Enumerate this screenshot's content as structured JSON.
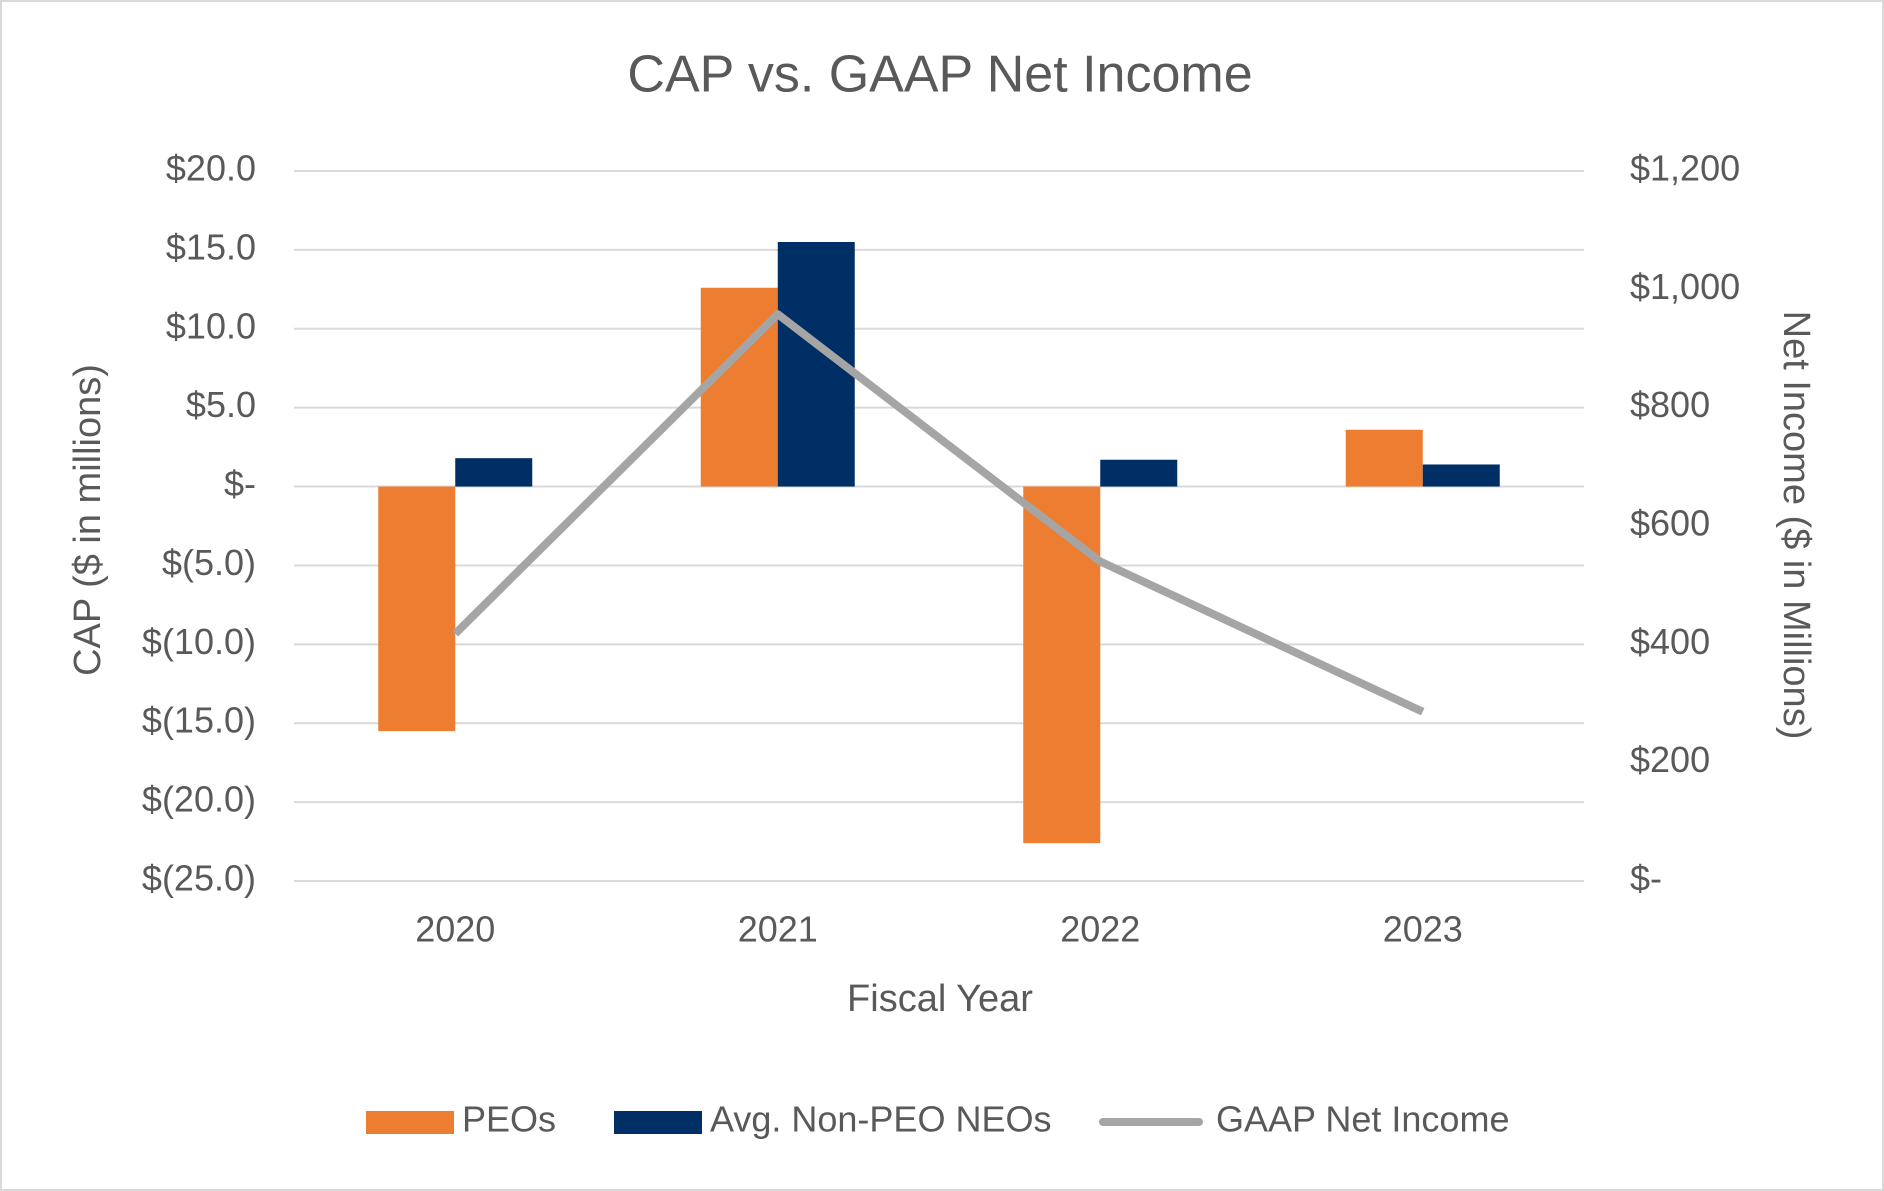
{
  "chart_data": {
    "type": "bar",
    "title": "CAP vs. GAAP Net Income",
    "x_label": "Fiscal Year",
    "y_label": "CAP ($ in millions)",
    "y2_label": "Net Income ($ in Millions)",
    "categories": [
      "2020",
      "2021",
      "2022",
      "2023"
    ],
    "series": [
      {
        "name": "PEOs",
        "type": "bar",
        "color": "#ed7d31",
        "values": [
          -15.5,
          12.6,
          -22.6,
          3.6
        ]
      },
      {
        "name": "Avg. Non-PEO NEOs",
        "type": "bar",
        "color": "#002f65",
        "values": [
          1.8,
          15.5,
          1.7,
          1.4
        ]
      },
      {
        "name": "GAAP Net Income",
        "type": "line",
        "axis": "y2",
        "color": "#a5a5a5",
        "values": [
          418,
          958,
          540,
          286
        ]
      }
    ],
    "ylim": [
      -25,
      20
    ],
    "yticks": [
      {
        "value": -25,
        "label": "$(25.0)"
      },
      {
        "value": -20,
        "label": "$(20.0)"
      },
      {
        "value": -15,
        "label": "$(15.0)"
      },
      {
        "value": -10,
        "label": "$(10.0)"
      },
      {
        "value": -5,
        "label": "$(5.0)"
      },
      {
        "value": 0,
        "label": "$-"
      },
      {
        "value": 5,
        "label": "$5.0"
      },
      {
        "value": 10,
        "label": "$10.0"
      },
      {
        "value": 15,
        "label": "$15.0"
      },
      {
        "value": 20,
        "label": "$20.0"
      }
    ],
    "y2lim": [
      0,
      1200
    ],
    "y2ticks": [
      {
        "value": 0,
        "label": "$-"
      },
      {
        "value": 200,
        "label": "$200"
      },
      {
        "value": 400,
        "label": "$400"
      },
      {
        "value": 600,
        "label": "$600"
      },
      {
        "value": 800,
        "label": "$800"
      },
      {
        "value": 1000,
        "label": "$1,000"
      },
      {
        "value": 1200,
        "label": "$1,200"
      }
    ],
    "grid": true,
    "legend": "bottom"
  }
}
